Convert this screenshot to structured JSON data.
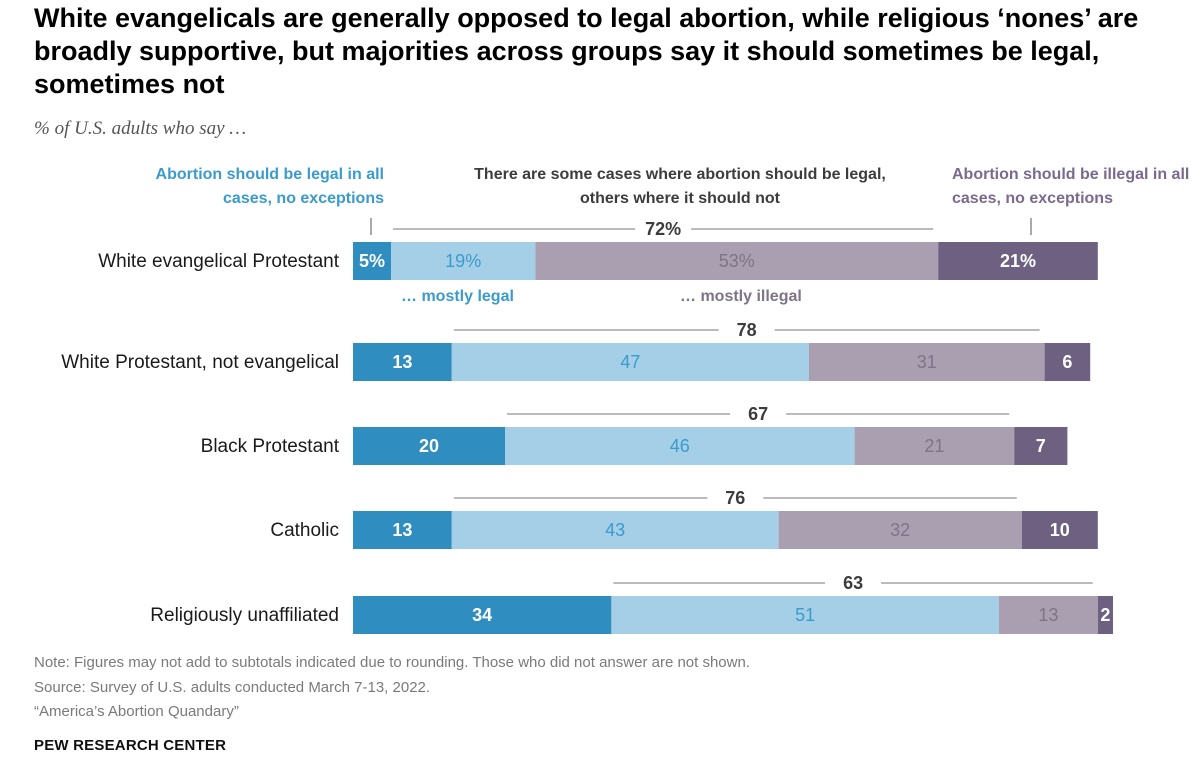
{
  "title": "White evangelicals are generally opposed to legal abortion, while religious ‘nones’ are broadly supportive, but majorities across groups say it should sometimes be legal, sometimes not",
  "subtitle": "% of U.S. adults who say …",
  "legend": {
    "legal_all": "Abortion should be legal in all cases, no exceptions",
    "some_cases": "There are some cases where abortion should be legal, others where it should not",
    "illegal_all": "Abortion should be illegal in all cases, no exceptions",
    "mostly_legal": "… mostly legal",
    "mostly_illegal": "… mostly illegal"
  },
  "colors": {
    "legal_all": "#2f8dc0",
    "mostly_legal": "#a5cfe7",
    "mostly_illegal": "#aa9fb0",
    "illegal_all": "#6e6080",
    "mostly_legal_text": "#3a9bcd",
    "mostly_illegal_text": "#7f7388"
  },
  "chart_data": {
    "type": "bar",
    "orientation": "horizontal",
    "stacked": true,
    "categories": [
      "White evangelical Protestant",
      "White Protestant, not evangelical",
      "Black Protestant",
      "Catholic",
      "Religiously unaffiliated"
    ],
    "series": [
      {
        "name": "Abortion should be legal in all cases, no exceptions",
        "values": [
          5,
          13,
          20,
          13,
          34
        ],
        "labels": [
          "5%",
          "13",
          "20",
          "13",
          "34"
        ]
      },
      {
        "name": "… mostly legal",
        "values": [
          19,
          47,
          46,
          43,
          51
        ],
        "labels": [
          "19%",
          "47",
          "46",
          "43",
          "51"
        ]
      },
      {
        "name": "… mostly illegal",
        "values": [
          53,
          31,
          21,
          32,
          13
        ],
        "labels": [
          "53%",
          "31",
          "21",
          "32",
          "13"
        ]
      },
      {
        "name": "Abortion should be illegal in all cases, no exceptions",
        "values": [
          21,
          6,
          7,
          10,
          2
        ],
        "labels": [
          "21%",
          "6",
          "7",
          "10",
          "2"
        ]
      }
    ],
    "subtotals": {
      "values": [
        72,
        78,
        67,
        76,
        63
      ],
      "labels": [
        "72%",
        "78",
        "67",
        "76",
        "63"
      ]
    },
    "xlim": [
      0,
      100
    ],
    "grid": false
  },
  "footer": {
    "note": "Note: Figures may not add to subtotals indicated due to rounding. Those who did not answer are not shown.",
    "source": "Source: Survey of U.S. adults conducted March 7-13, 2022.",
    "report": "“America’s Abortion Quandary”",
    "brand": "PEW RESEARCH CENTER"
  }
}
